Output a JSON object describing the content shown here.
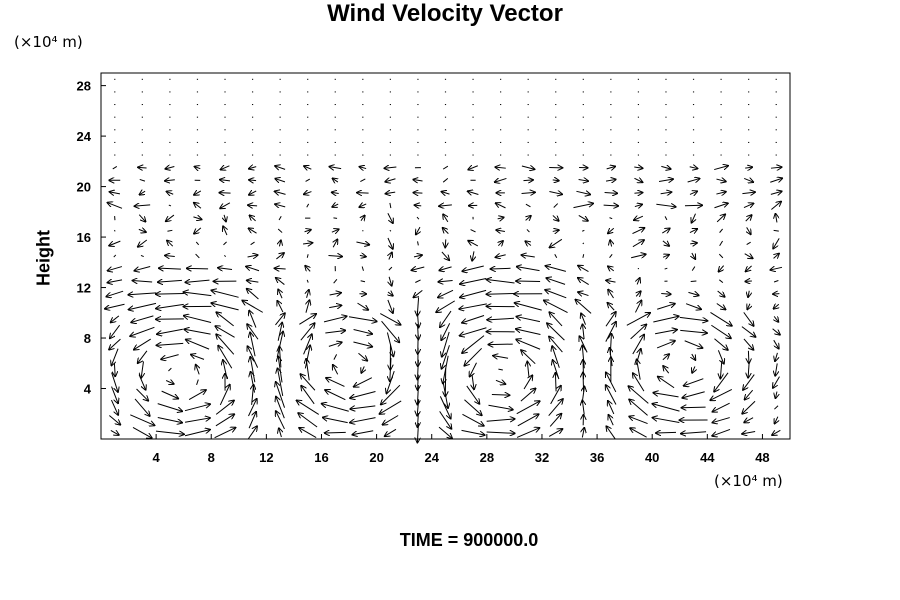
{
  "chart_data": {
    "type": "vector-field",
    "title": "Wind Velocity Vector",
    "xlabel": "",
    "ylabel": "Height",
    "x_unit": "(×10⁴ m)",
    "y_unit": "(×10⁴ m)",
    "xlim": [
      0,
      50
    ],
    "ylim": [
      0,
      29
    ],
    "x_ticks": [
      4,
      8,
      12,
      16,
      20,
      24,
      28,
      32,
      36,
      40,
      44,
      48
    ],
    "y_ticks": [
      4,
      8,
      12,
      16,
      20,
      24,
      28
    ],
    "grid_spacing": {
      "dx": 2,
      "dy": 1
    },
    "grid_rows": 29,
    "grid_cols": 25,
    "arrow_color": "#000000",
    "footer": "TIME = 900000.0"
  }
}
